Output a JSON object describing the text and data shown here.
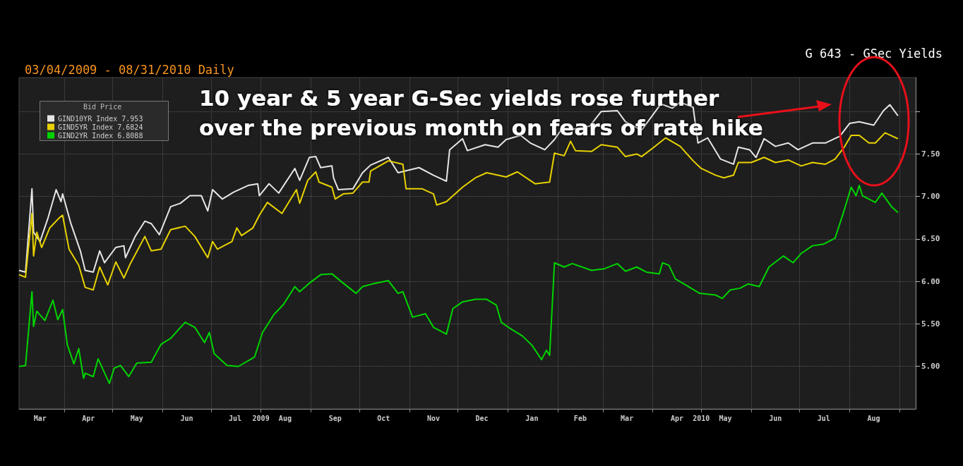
{
  "chart_data": {
    "type": "line",
    "title": "G 643 - GSec Yields",
    "subtitle": "03/04/2009 - 08/31/2010 Daily",
    "legend_title": "Bid Price",
    "annotations": [
      "10 year & 5 year G-Sec yields rose further over the previous month on fears of rate hike"
    ],
    "legend": "top left",
    "grid": true,
    "marker": "none",
    "line_style": "solid",
    "ylim": [
      4.5,
      8.4
    ],
    "yticks": [
      {
        "value": 5,
        "label": "5.00"
      },
      {
        "value": 5.5,
        "label": "5.50"
      },
      {
        "value": 6,
        "label": "6.00"
      },
      {
        "value": 6.5,
        "label": "6.50"
      },
      {
        "value": 7,
        "label": "7.00"
      },
      {
        "value": 7.5,
        "label": "7.50"
      },
      {
        "value": 8,
        "label": null
      }
    ],
    "xlim": [
      "2009-03-04",
      "2010-09-11"
    ],
    "xticks": [
      {
        "value": "2009-03-17",
        "label": "Mar"
      },
      {
        "value": "2009-04-01",
        "label": null
      },
      {
        "value": "2009-04-16",
        "label": "Apr"
      },
      {
        "value": "2009-05-01",
        "label": null
      },
      {
        "value": "2009-05-16",
        "label": "May"
      },
      {
        "value": "2009-06-01",
        "label": null
      },
      {
        "value": "2009-06-16",
        "label": "Jun"
      },
      {
        "value": "2009-07-01",
        "label": null
      },
      {
        "value": "2009-07-16",
        "label": "Jul"
      },
      {
        "value": "2009-08-01",
        "label": "2009"
      },
      {
        "value": "2009-08-16",
        "label": "Aug"
      },
      {
        "value": "2009-09-01",
        "label": null
      },
      {
        "value": "2009-09-16",
        "label": "Sep"
      },
      {
        "value": "2009-10-01",
        "label": null
      },
      {
        "value": "2009-10-16",
        "label": "Oct"
      },
      {
        "value": "2009-11-01",
        "label": null
      },
      {
        "value": "2009-11-16",
        "label": "Nov"
      },
      {
        "value": "2009-12-01",
        "label": null
      },
      {
        "value": "2009-12-16",
        "label": "Dec"
      },
      {
        "value": "2010-01-01",
        "label": null
      },
      {
        "value": "2010-01-16",
        "label": "Jan"
      },
      {
        "value": "2010-02-01",
        "label": null
      },
      {
        "value": "2010-02-15",
        "label": "Feb"
      },
      {
        "value": "2010-03-01",
        "label": null
      },
      {
        "value": "2010-03-16",
        "label": "Mar"
      },
      {
        "value": "2010-04-01",
        "label": null
      },
      {
        "value": "2010-04-16",
        "label": "Apr"
      },
      {
        "value": "2010-05-01",
        "label": "2010"
      },
      {
        "value": "2010-05-16",
        "label": "May"
      },
      {
        "value": "2010-06-01",
        "label": null
      },
      {
        "value": "2010-06-16",
        "label": "Jun"
      },
      {
        "value": "2010-07-01",
        "label": null
      },
      {
        "value": "2010-07-16",
        "label": "Jul"
      },
      {
        "value": "2010-08-01",
        "label": null
      },
      {
        "value": "2010-08-16",
        "label": "Aug"
      },
      {
        "value": "2010-09-01",
        "label": null
      }
    ],
    "series": [
      {
        "name": "GIND10YR Index 7.953",
        "color": "#e6e6e6",
        "x": [
          "2009-03-04",
          "2009-03-08",
          "2009-03-12",
          "2009-03-13",
          "2009-03-17",
          "2009-03-22",
          "2009-03-27",
          "2009-03-30",
          "2009-03-31",
          "2009-04-05",
          "2009-04-11",
          "2009-04-14",
          "2009-04-19",
          "2009-04-23",
          "2009-04-26",
          "2009-05-03",
          "2009-05-08",
          "2009-05-09",
          "2009-05-15",
          "2009-05-21",
          "2009-05-25",
          "2009-05-30",
          "2009-06-06",
          "2009-06-12",
          "2009-06-18",
          "2009-06-25",
          "2009-06-29",
          "2009-07-02",
          "2009-07-08",
          "2009-07-15",
          "2009-07-24",
          "2009-07-30",
          "2009-07-31",
          "2009-08-06",
          "2009-08-12",
          "2009-08-22",
          "2009-08-25",
          "2009-08-31",
          "2009-09-04",
          "2009-09-07",
          "2009-09-14",
          "2009-09-15",
          "2009-09-18",
          "2009-09-27",
          "2009-10-03",
          "2009-10-08",
          "2009-10-19",
          "2009-10-25",
          "2009-11-07",
          "2009-11-16",
          "2009-11-24",
          "2009-11-26",
          "2009-12-04",
          "2009-12-07",
          "2009-12-18",
          "2009-12-26",
          "2009-12-31",
          "2010-01-09",
          "2010-01-15",
          "2010-01-24",
          "2010-01-30",
          "2010-02-03",
          "2010-02-14",
          "2010-02-21",
          "2010-02-28",
          "2010-03-10",
          "2010-03-15",
          "2010-03-25",
          "2010-04-06",
          "2010-04-13",
          "2010-04-18",
          "2010-04-26",
          "2010-04-29",
          "2010-05-05",
          "2010-05-13",
          "2010-05-21",
          "2010-05-24",
          "2010-05-31",
          "2010-06-04",
          "2010-06-09",
          "2010-06-16",
          "2010-06-24",
          "2010-06-30",
          "2010-07-09",
          "2010-07-17",
          "2010-07-26",
          "2010-08-01",
          "2010-08-07",
          "2010-08-16",
          "2010-08-22",
          "2010-08-26",
          "2010-08-31"
        ],
        "values": [
          6.13,
          6.11,
          7.09,
          6.58,
          6.47,
          6.75,
          7.08,
          6.94,
          7.03,
          6.69,
          6.36,
          6.13,
          6.11,
          6.36,
          6.22,
          6.4,
          6.42,
          6.28,
          6.53,
          6.71,
          6.68,
          6.55,
          6.88,
          6.92,
          7.01,
          7.01,
          6.83,
          7.08,
          6.97,
          7.05,
          7.13,
          7.15,
          7.01,
          7.15,
          7.04,
          7.33,
          7.19,
          7.46,
          7.47,
          7.34,
          7.36,
          7.22,
          7.08,
          7.09,
          7.28,
          7.37,
          7.46,
          7.28,
          7.34,
          7.25,
          7.18,
          7.55,
          7.68,
          7.54,
          7.61,
          7.58,
          7.67,
          7.72,
          7.63,
          7.55,
          7.67,
          7.78,
          7.8,
          7.83,
          8.0,
          8.01,
          7.88,
          7.78,
          8.09,
          8.04,
          8.11,
          8.05,
          7.63,
          7.69,
          7.44,
          7.38,
          7.58,
          7.55,
          7.46,
          7.68,
          7.59,
          7.63,
          7.55,
          7.63,
          7.63,
          7.71,
          7.86,
          7.88,
          7.84,
          8.01,
          8.08,
          7.95
        ]
      },
      {
        "name": "GIND5YR Index 7.6824",
        "color": "#e8d200",
        "x": [
          "2009-03-04",
          "2009-03-08",
          "2009-03-12",
          "2009-03-13",
          "2009-03-15",
          "2009-03-18",
          "2009-03-23",
          "2009-03-29",
          "2009-03-31",
          "2009-04-04",
          "2009-04-10",
          "2009-04-14",
          "2009-04-19",
          "2009-04-23",
          "2009-04-28",
          "2009-05-03",
          "2009-05-08",
          "2009-05-12",
          "2009-05-21",
          "2009-05-25",
          "2009-05-31",
          "2009-06-06",
          "2009-06-15",
          "2009-06-21",
          "2009-06-29",
          "2009-07-02",
          "2009-07-05",
          "2009-07-14",
          "2009-07-17",
          "2009-07-20",
          "2009-07-27",
          "2009-07-31",
          "2009-08-05",
          "2009-08-14",
          "2009-08-23",
          "2009-08-25",
          "2009-08-30",
          "2009-09-04",
          "2009-09-06",
          "2009-09-14",
          "2009-09-16",
          "2009-09-21",
          "2009-09-27",
          "2009-10-03",
          "2009-10-07",
          "2009-10-08",
          "2009-10-19",
          "2009-10-28",
          "2009-10-30",
          "2009-11-09",
          "2009-11-16",
          "2009-11-18",
          "2009-11-24",
          "2009-12-04",
          "2009-12-12",
          "2009-12-19",
          "2009-12-31",
          "2010-01-07",
          "2010-01-18",
          "2010-01-27",
          "2010-01-30",
          "2010-02-05",
          "2010-02-09",
          "2010-02-12",
          "2010-02-22",
          "2010-02-28",
          "2010-03-10",
          "2010-03-15",
          "2010-03-22",
          "2010-03-25",
          "2010-04-01",
          "2010-04-09",
          "2010-04-18",
          "2010-04-26",
          "2010-05-01",
          "2010-05-10",
          "2010-05-15",
          "2010-05-21",
          "2010-05-24",
          "2010-06-01",
          "2010-06-09",
          "2010-06-16",
          "2010-06-24",
          "2010-07-02",
          "2010-07-09",
          "2010-07-17",
          "2010-07-23",
          "2010-07-29",
          "2010-08-02",
          "2010-08-07",
          "2010-08-13",
          "2010-08-17",
          "2010-08-23",
          "2010-08-31"
        ],
        "values": [
          6.08,
          6.05,
          6.8,
          6.3,
          6.58,
          6.4,
          6.63,
          6.75,
          6.78,
          6.38,
          6.19,
          5.93,
          5.9,
          6.17,
          5.96,
          6.23,
          6.04,
          6.21,
          6.53,
          6.36,
          6.38,
          6.61,
          6.65,
          6.53,
          6.28,
          6.47,
          6.38,
          6.47,
          6.63,
          6.54,
          6.63,
          6.78,
          6.93,
          6.8,
          7.08,
          6.92,
          7.19,
          7.29,
          7.17,
          7.11,
          6.97,
          7.03,
          7.04,
          7.17,
          7.17,
          7.3,
          7.42,
          7.38,
          7.09,
          7.09,
          7.03,
          6.9,
          6.94,
          7.11,
          7.22,
          7.28,
          7.23,
          7.29,
          7.15,
          7.17,
          7.51,
          7.48,
          7.65,
          7.54,
          7.53,
          7.61,
          7.58,
          7.47,
          7.5,
          7.47,
          7.57,
          7.69,
          7.59,
          7.42,
          7.33,
          7.25,
          7.22,
          7.25,
          7.4,
          7.4,
          7.46,
          7.4,
          7.43,
          7.36,
          7.4,
          7.38,
          7.44,
          7.59,
          7.72,
          7.72,
          7.63,
          7.63,
          7.75,
          7.68
        ]
      },
      {
        "name": "GIND2YR Index 6.8088",
        "color": "#00d400",
        "x": [
          "2009-03-04",
          "2009-03-08",
          "2009-03-12",
          "2009-03-13",
          "2009-03-15",
          "2009-03-20",
          "2009-03-25",
          "2009-03-28",
          "2009-03-31",
          "2009-04-03",
          "2009-04-07",
          "2009-04-10",
          "2009-04-13",
          "2009-04-14",
          "2009-04-19",
          "2009-04-22",
          "2009-04-29",
          "2009-05-02",
          "2009-05-06",
          "2009-05-11",
          "2009-05-16",
          "2009-05-25",
          "2009-05-31",
          "2009-06-06",
          "2009-06-15",
          "2009-06-21",
          "2009-06-27",
          "2009-06-30",
          "2009-07-03",
          "2009-07-11",
          "2009-07-18",
          "2009-07-28",
          "2009-08-02",
          "2009-08-09",
          "2009-08-15",
          "2009-08-22",
          "2009-08-25",
          "2009-08-31",
          "2009-09-07",
          "2009-09-14",
          "2009-09-21",
          "2009-09-29",
          "2009-10-03",
          "2009-10-09",
          "2009-10-19",
          "2009-10-25",
          "2009-10-28",
          "2009-11-03",
          "2009-11-11",
          "2009-11-16",
          "2009-11-24",
          "2009-11-28",
          "2009-12-04",
          "2009-12-12",
          "2009-12-19",
          "2009-12-25",
          "2009-12-28",
          "2010-01-03",
          "2010-01-10",
          "2010-01-16",
          "2010-01-22",
          "2010-01-25",
          "2010-01-27",
          "2010-01-30",
          "2010-02-05",
          "2010-02-10",
          "2010-02-22",
          "2010-03-02",
          "2010-03-10",
          "2010-03-15",
          "2010-03-22",
          "2010-03-28",
          "2010-04-05",
          "2010-04-07",
          "2010-04-11",
          "2010-04-15",
          "2010-04-23",
          "2010-04-30",
          "2010-05-10",
          "2010-05-14",
          "2010-05-19",
          "2010-05-25",
          "2010-05-30",
          "2010-06-06",
          "2010-06-12",
          "2010-06-21",
          "2010-06-27",
          "2010-07-02",
          "2010-07-09",
          "2010-07-16",
          "2010-07-23",
          "2010-07-28",
          "2010-08-02",
          "2010-08-05",
          "2010-08-07",
          "2010-08-09",
          "2010-08-17",
          "2010-08-21",
          "2010-08-27",
          "2010-08-31"
        ],
        "values": [
          5.0,
          5.01,
          5.88,
          5.47,
          5.65,
          5.54,
          5.78,
          5.55,
          5.67,
          5.25,
          5.03,
          5.21,
          4.86,
          4.92,
          4.88,
          5.09,
          4.8,
          4.98,
          5.01,
          4.88,
          5.04,
          5.05,
          5.26,
          5.33,
          5.52,
          5.46,
          5.28,
          5.4,
          5.15,
          5.01,
          5.0,
          5.11,
          5.4,
          5.61,
          5.73,
          5.94,
          5.88,
          5.98,
          6.08,
          6.09,
          5.98,
          5.86,
          5.94,
          5.97,
          6.01,
          5.86,
          5.88,
          5.58,
          5.62,
          5.46,
          5.38,
          5.68,
          5.76,
          5.79,
          5.79,
          5.72,
          5.52,
          5.44,
          5.36,
          5.25,
          5.08,
          5.19,
          5.13,
          6.22,
          6.17,
          6.21,
          6.13,
          6.15,
          6.21,
          6.12,
          6.17,
          6.11,
          6.09,
          6.22,
          6.19,
          6.03,
          5.94,
          5.86,
          5.84,
          5.8,
          5.9,
          5.92,
          5.97,
          5.94,
          6.17,
          6.3,
          6.22,
          6.33,
          6.42,
          6.44,
          6.51,
          6.8,
          7.11,
          7.01,
          7.13,
          7.01,
          6.93,
          7.04,
          6.88,
          6.81
        ]
      }
    ]
  }
}
